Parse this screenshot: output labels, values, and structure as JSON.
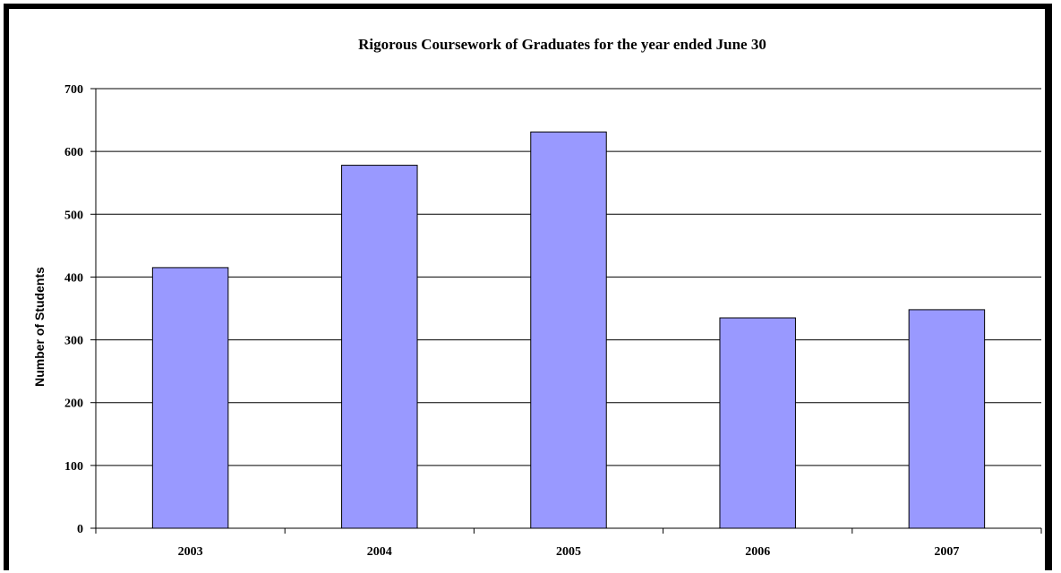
{
  "chart_data": {
    "type": "bar",
    "title": "Rigorous Coursework of Graduates for the year ended June 30",
    "xlabel": "",
    "ylabel": "Number of Students",
    "categories": [
      "2003",
      "2004",
      "2005",
      "2006",
      "2007"
    ],
    "values": [
      415,
      578,
      631,
      335,
      348
    ],
    "ylim": [
      0,
      700
    ],
    "yticks": [
      0,
      100,
      200,
      300,
      400,
      500,
      600,
      700
    ],
    "grid": true,
    "legend": "none",
    "bar_color": "#9999ff",
    "bar_edge_color": "#000000",
    "grid_color": "#000000"
  }
}
